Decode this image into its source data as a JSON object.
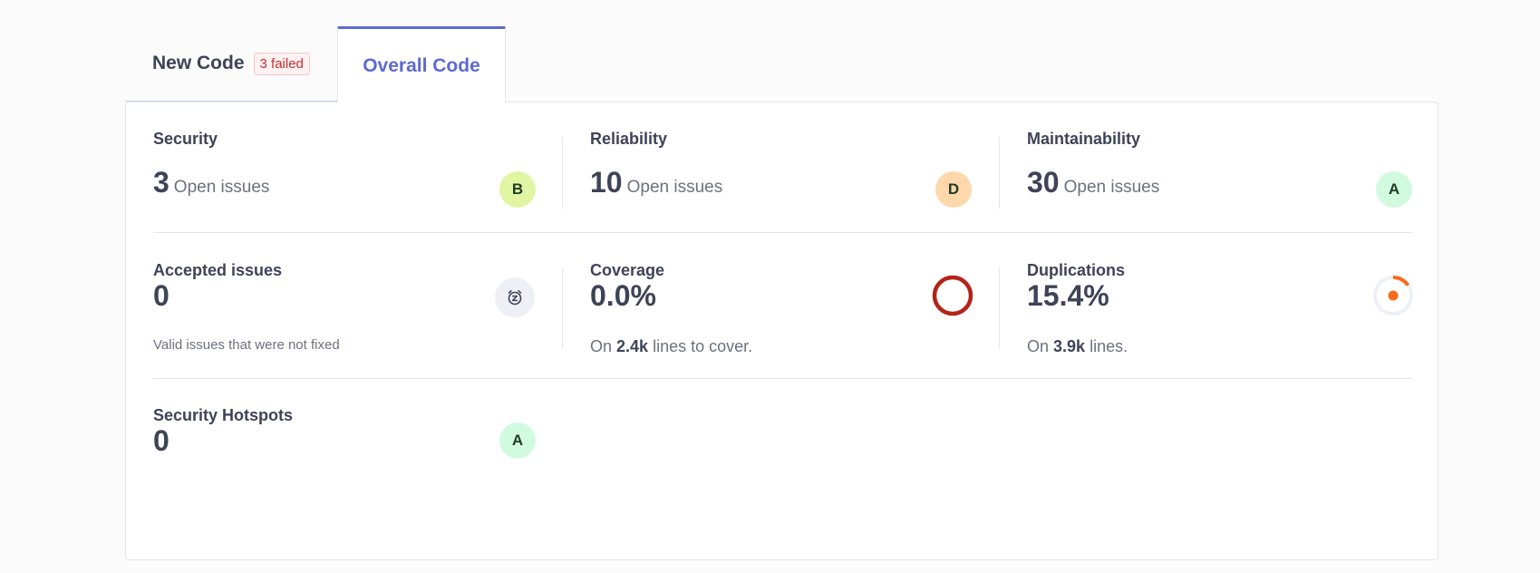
{
  "tabs": {
    "new_code": {
      "label": "New Code",
      "badge": "3 failed"
    },
    "overall_code": {
      "label": "Overall Code"
    }
  },
  "metrics": {
    "security": {
      "title": "Security",
      "value": "3",
      "unit": "Open issues",
      "rating": "B",
      "rating_color": "#e2f5a3"
    },
    "reliability": {
      "title": "Reliability",
      "value": "10",
      "unit": "Open issues",
      "rating": "D",
      "rating_color": "#fed7aa"
    },
    "maintainability": {
      "title": "Maintainability",
      "value": "30",
      "unit": "Open issues",
      "rating": "A",
      "rating_color": "#d1fadf"
    },
    "accepted": {
      "title": "Accepted issues",
      "value": "0",
      "note": "Valid issues that were not fixed",
      "icon": "alarm-snooze-icon"
    },
    "coverage": {
      "title": "Coverage",
      "value": "0.0%",
      "sub_prefix": "On",
      "sub_value": "2.4k",
      "sub_suffix": "lines to cover.",
      "percent": 0.0,
      "color": "#b42318"
    },
    "duplications": {
      "title": "Duplications",
      "value": "15.4%",
      "sub_prefix": "On",
      "sub_value": "3.9k",
      "sub_suffix": "lines.",
      "percent": 15.4,
      "color": "#f96a1b"
    },
    "hotspots": {
      "title": "Security Hotspots",
      "value": "0",
      "rating": "A",
      "rating_color": "#d1fadf"
    }
  },
  "colors": {
    "accent": "#5d6ad2",
    "failed": "#c92f2f",
    "text": "#3e4357",
    "muted": "#6b7180"
  }
}
